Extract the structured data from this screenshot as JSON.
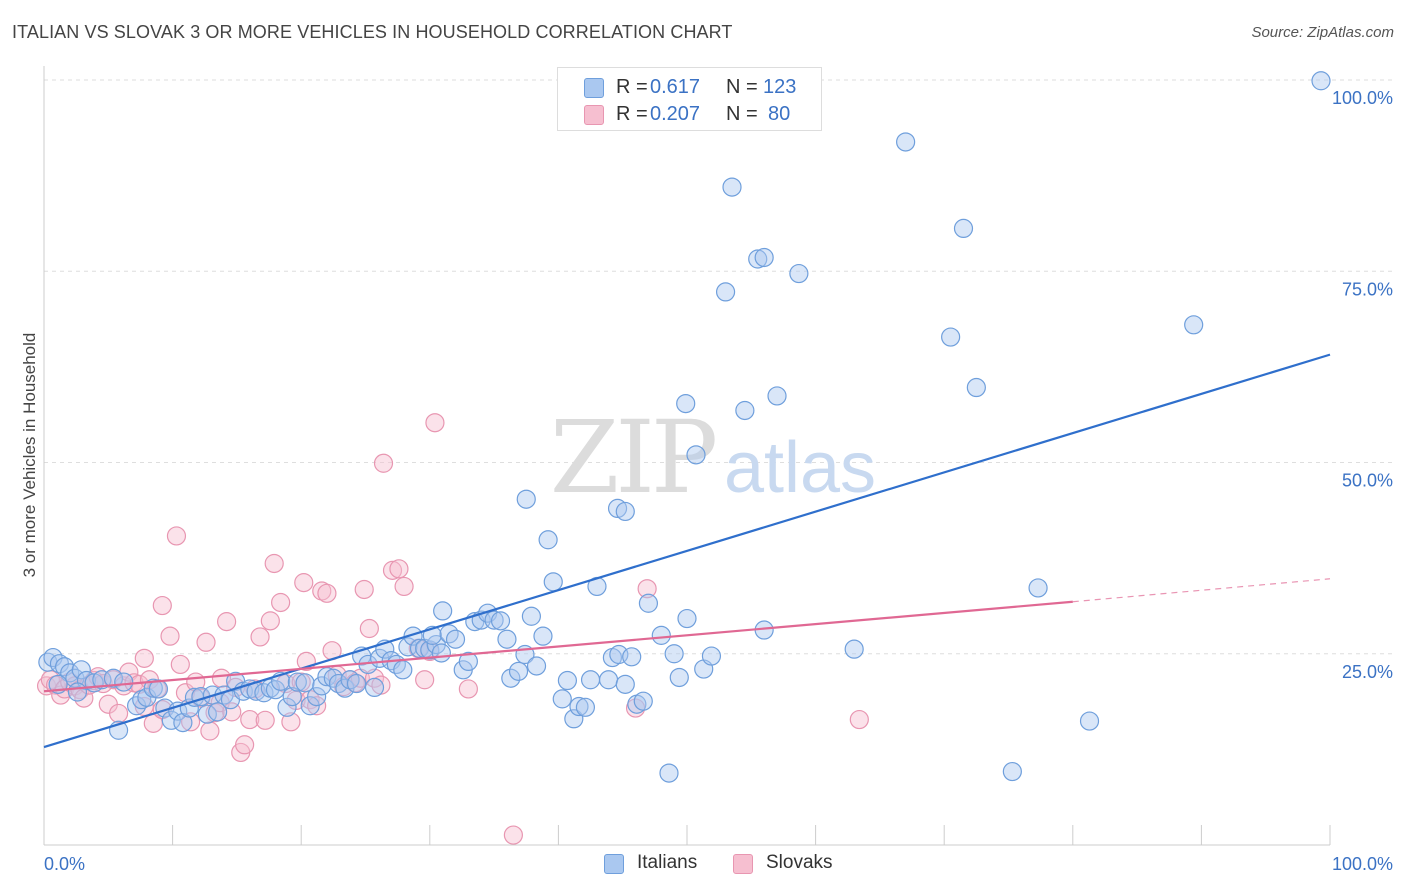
{
  "header": {
    "title": "ITALIAN VS SLOVAK 3 OR MORE VEHICLES IN HOUSEHOLD CORRELATION CHART",
    "source": "Source: ZipAtlas.com"
  },
  "legend": {
    "r_label": "R =",
    "n_label": "N =",
    "italians": {
      "r": "0.617",
      "n": "123"
    },
    "slovaks": {
      "r": "0.207",
      "n": "80"
    }
  },
  "watermark": {
    "zip": "ZIP",
    "atlas": "atlas"
  },
  "colors": {
    "italians_fill": "#aac8f0",
    "italians_stroke": "#6f9fdc",
    "italians_line": "#2f6fcc",
    "slovaks_fill": "#f6bfd0",
    "slovaks_stroke": "#e896b1",
    "slovaks_line": "#e06893",
    "tick_label": "#3b72c4"
  },
  "chart_data": {
    "type": "scatter",
    "title": "ITALIAN VS SLOVAK 3 OR MORE VEHICLES IN HOUSEHOLD CORRELATION CHART",
    "xlabel": "",
    "ylabel": "3 or more Vehicles in Household",
    "xlim": [
      0,
      100
    ],
    "ylim": [
      0,
      100
    ],
    "x_tick_labels": [
      "0.0%",
      "100.0%"
    ],
    "y_ticks": [
      25,
      50,
      75,
      100
    ],
    "y_tick_labels": [
      "25.0%",
      "50.0%",
      "75.0%",
      "100.0%"
    ],
    "grid": true,
    "legend_position": "bottom-center",
    "series": [
      {
        "name": "Italians",
        "trend": {
          "x": [
            0,
            100
          ],
          "y": [
            12.8,
            64.1
          ]
        },
        "points": [
          [
            0.3,
            23.9
          ],
          [
            0.7,
            24.5
          ],
          [
            1.2,
            23.7
          ],
          [
            1.6,
            23.3
          ],
          [
            2.0,
            22.5
          ],
          [
            2.4,
            21.8
          ],
          [
            2.9,
            22.9
          ],
          [
            3.3,
            21.5
          ],
          [
            3.9,
            21.2
          ],
          [
            4.5,
            21.6
          ],
          [
            5.4,
            21.8
          ],
          [
            5.8,
            15.0
          ],
          [
            6.2,
            21.3
          ],
          [
            7.2,
            18.2
          ],
          [
            7.6,
            19.0
          ],
          [
            8.0,
            19.3
          ],
          [
            8.5,
            20.5
          ],
          [
            8.9,
            20.4
          ],
          [
            9.4,
            17.9
          ],
          [
            9.9,
            16.3
          ],
          [
            10.4,
            17.5
          ],
          [
            10.8,
            16.0
          ],
          [
            11.3,
            17.9
          ],
          [
            11.7,
            19.3
          ],
          [
            12.2,
            19.4
          ],
          [
            12.7,
            17.1
          ],
          [
            13.1,
            19.6
          ],
          [
            13.5,
            17.4
          ],
          [
            14.0,
            19.6
          ],
          [
            14.5,
            19.0
          ],
          [
            14.9,
            21.4
          ],
          [
            15.5,
            20.1
          ],
          [
            16.0,
            20.4
          ],
          [
            16.5,
            20.1
          ],
          [
            17.1,
            19.9
          ],
          [
            17.6,
            20.5
          ],
          [
            18.0,
            20.3
          ],
          [
            18.4,
            21.4
          ],
          [
            18.9,
            18.0
          ],
          [
            19.3,
            19.4
          ],
          [
            19.7,
            21.3
          ],
          [
            20.3,
            21.2
          ],
          [
            20.7,
            18.2
          ],
          [
            21.2,
            19.4
          ],
          [
            21.6,
            20.8
          ],
          [
            22.0,
            22.0
          ],
          [
            22.5,
            21.8
          ],
          [
            22.9,
            21.1
          ],
          [
            23.4,
            20.5
          ],
          [
            23.8,
            21.6
          ],
          [
            24.3,
            21.1
          ],
          [
            24.7,
            24.7
          ],
          [
            25.2,
            23.6
          ],
          [
            25.7,
            20.6
          ],
          [
            26.1,
            24.4
          ],
          [
            26.5,
            25.6
          ],
          [
            27.0,
            24.1
          ],
          [
            27.4,
            23.6
          ],
          [
            27.9,
            22.9
          ],
          [
            28.3,
            25.9
          ],
          [
            28.7,
            27.3
          ],
          [
            29.2,
            25.7
          ],
          [
            29.6,
            25.7
          ],
          [
            30.0,
            25.5
          ],
          [
            30.5,
            26.2
          ],
          [
            30.9,
            25.1
          ],
          [
            30.2,
            27.4
          ],
          [
            31.0,
            30.6
          ],
          [
            31.5,
            27.6
          ],
          [
            32.0,
            26.9
          ],
          [
            32.6,
            22.9
          ],
          [
            33.0,
            24.0
          ],
          [
            33.5,
            29.2
          ],
          [
            34.0,
            29.4
          ],
          [
            34.5,
            30.3
          ],
          [
            35.0,
            29.4
          ],
          [
            35.5,
            29.3
          ],
          [
            36.0,
            26.9
          ],
          [
            36.3,
            21.8
          ],
          [
            36.9,
            22.7
          ],
          [
            37.4,
            24.9
          ],
          [
            37.9,
            29.9
          ],
          [
            38.3,
            23.4
          ],
          [
            38.8,
            27.3
          ],
          [
            39.2,
            39.9
          ],
          [
            39.6,
            34.4
          ],
          [
            40.3,
            19.1
          ],
          [
            40.7,
            21.5
          ],
          [
            41.2,
            16.5
          ],
          [
            41.6,
            18.1
          ],
          [
            42.1,
            18.0
          ],
          [
            42.5,
            21.6
          ],
          [
            43.0,
            33.8
          ],
          [
            43.9,
            21.6
          ],
          [
            44.2,
            24.5
          ],
          [
            44.7,
            24.9
          ],
          [
            45.2,
            21.0
          ],
          [
            45.7,
            24.6
          ],
          [
            46.1,
            18.4
          ],
          [
            46.6,
            18.8
          ],
          [
            47.0,
            31.6
          ],
          [
            48.0,
            27.4
          ],
          [
            48.6,
            9.4
          ],
          [
            49.0,
            25.0
          ],
          [
            49.4,
            21.9
          ],
          [
            50.0,
            29.6
          ],
          [
            49.9,
            57.7
          ],
          [
            50.7,
            51.0
          ],
          [
            51.3,
            23.0
          ],
          [
            51.9,
            24.7
          ],
          [
            53.0,
            72.3
          ],
          [
            53.5,
            86.0
          ],
          [
            54.5,
            56.8
          ],
          [
            55.5,
            76.6
          ],
          [
            56.0,
            76.8
          ],
          [
            57.0,
            58.7
          ],
          [
            56.0,
            28.1
          ],
          [
            58.7,
            74.7
          ],
          [
            63.0,
            25.6
          ],
          [
            67.0,
            91.9
          ],
          [
            70.5,
            66.4
          ],
          [
            71.5,
            80.6
          ],
          [
            72.5,
            59.8
          ],
          [
            75.3,
            9.6
          ],
          [
            77.3,
            33.6
          ],
          [
            81.3,
            16.2
          ],
          [
            89.4,
            68.0
          ],
          [
            99.3,
            99.9
          ],
          [
            37.5,
            45.2
          ],
          [
            44.6,
            44.0
          ],
          [
            45.2,
            43.6
          ],
          [
            1.1,
            21.0
          ],
          [
            2.6,
            20.0
          ]
        ]
      },
      {
        "name": "Slovaks",
        "trend": {
          "x": [
            0,
            80
          ],
          "y": [
            20.1,
            31.8
          ],
          "dashed_extension": {
            "x": [
              80,
              100
            ],
            "y": [
              31.8,
              34.8
            ]
          }
        },
        "points": [
          [
            0.2,
            20.8
          ],
          [
            0.5,
            21.6
          ],
          [
            0.9,
            20.9
          ],
          [
            1.3,
            19.6
          ],
          [
            1.6,
            20.4
          ],
          [
            2.0,
            21.3
          ],
          [
            2.4,
            20.8
          ],
          [
            2.8,
            20.3
          ],
          [
            3.1,
            19.2
          ],
          [
            3.5,
            20.9
          ],
          [
            3.9,
            21.5
          ],
          [
            4.2,
            22.0
          ],
          [
            4.6,
            21.1
          ],
          [
            5.0,
            18.4
          ],
          [
            5.4,
            21.6
          ],
          [
            5.8,
            17.2
          ],
          [
            6.2,
            20.8
          ],
          [
            6.6,
            22.6
          ],
          [
            7.0,
            21.2
          ],
          [
            7.4,
            21.0
          ],
          [
            7.8,
            18.1
          ],
          [
            7.8,
            24.4
          ],
          [
            8.2,
            21.6
          ],
          [
            8.5,
            15.9
          ],
          [
            8.8,
            20.4
          ],
          [
            9.2,
            17.7
          ],
          [
            9.2,
            31.3
          ],
          [
            9.8,
            27.3
          ],
          [
            10.3,
            40.4
          ],
          [
            10.6,
            23.6
          ],
          [
            11.0,
            19.9
          ],
          [
            11.4,
            16.1
          ],
          [
            11.8,
            21.3
          ],
          [
            12.2,
            19.2
          ],
          [
            12.6,
            26.5
          ],
          [
            12.9,
            14.9
          ],
          [
            13.3,
            17.3
          ],
          [
            13.7,
            18.6
          ],
          [
            13.8,
            21.8
          ],
          [
            14.2,
            29.2
          ],
          [
            14.6,
            17.4
          ],
          [
            14.9,
            20.6
          ],
          [
            15.3,
            12.1
          ],
          [
            15.6,
            13.1
          ],
          [
            16.0,
            16.4
          ],
          [
            16.4,
            20.4
          ],
          [
            16.8,
            27.2
          ],
          [
            17.2,
            16.3
          ],
          [
            17.6,
            29.3
          ],
          [
            17.9,
            36.8
          ],
          [
            18.4,
            31.7
          ],
          [
            18.8,
            21.1
          ],
          [
            19.2,
            16.1
          ],
          [
            19.6,
            18.9
          ],
          [
            20.0,
            21.3
          ],
          [
            20.4,
            24.0
          ],
          [
            20.7,
            19.0
          ],
          [
            21.2,
            18.2
          ],
          [
            21.6,
            33.2
          ],
          [
            22.0,
            32.9
          ],
          [
            22.4,
            25.4
          ],
          [
            22.8,
            22.2
          ],
          [
            23.3,
            20.7
          ],
          [
            23.8,
            21.6
          ],
          [
            24.2,
            21.2
          ],
          [
            24.6,
            21.8
          ],
          [
            24.9,
            33.4
          ],
          [
            25.3,
            28.3
          ],
          [
            25.7,
            21.8
          ],
          [
            26.2,
            20.9
          ],
          [
            27.1,
            35.9
          ],
          [
            27.6,
            36.1
          ],
          [
            28.0,
            33.8
          ],
          [
            29.1,
            25.7
          ],
          [
            29.6,
            21.6
          ],
          [
            30.0,
            25.3
          ],
          [
            30.4,
            55.2
          ],
          [
            26.4,
            49.9
          ],
          [
            36.5,
            1.3
          ],
          [
            46.9,
            33.5
          ],
          [
            33.0,
            20.4
          ],
          [
            46.0,
            17.9
          ],
          [
            63.4,
            16.4
          ],
          [
            20.2,
            34.3
          ]
        ]
      }
    ]
  }
}
